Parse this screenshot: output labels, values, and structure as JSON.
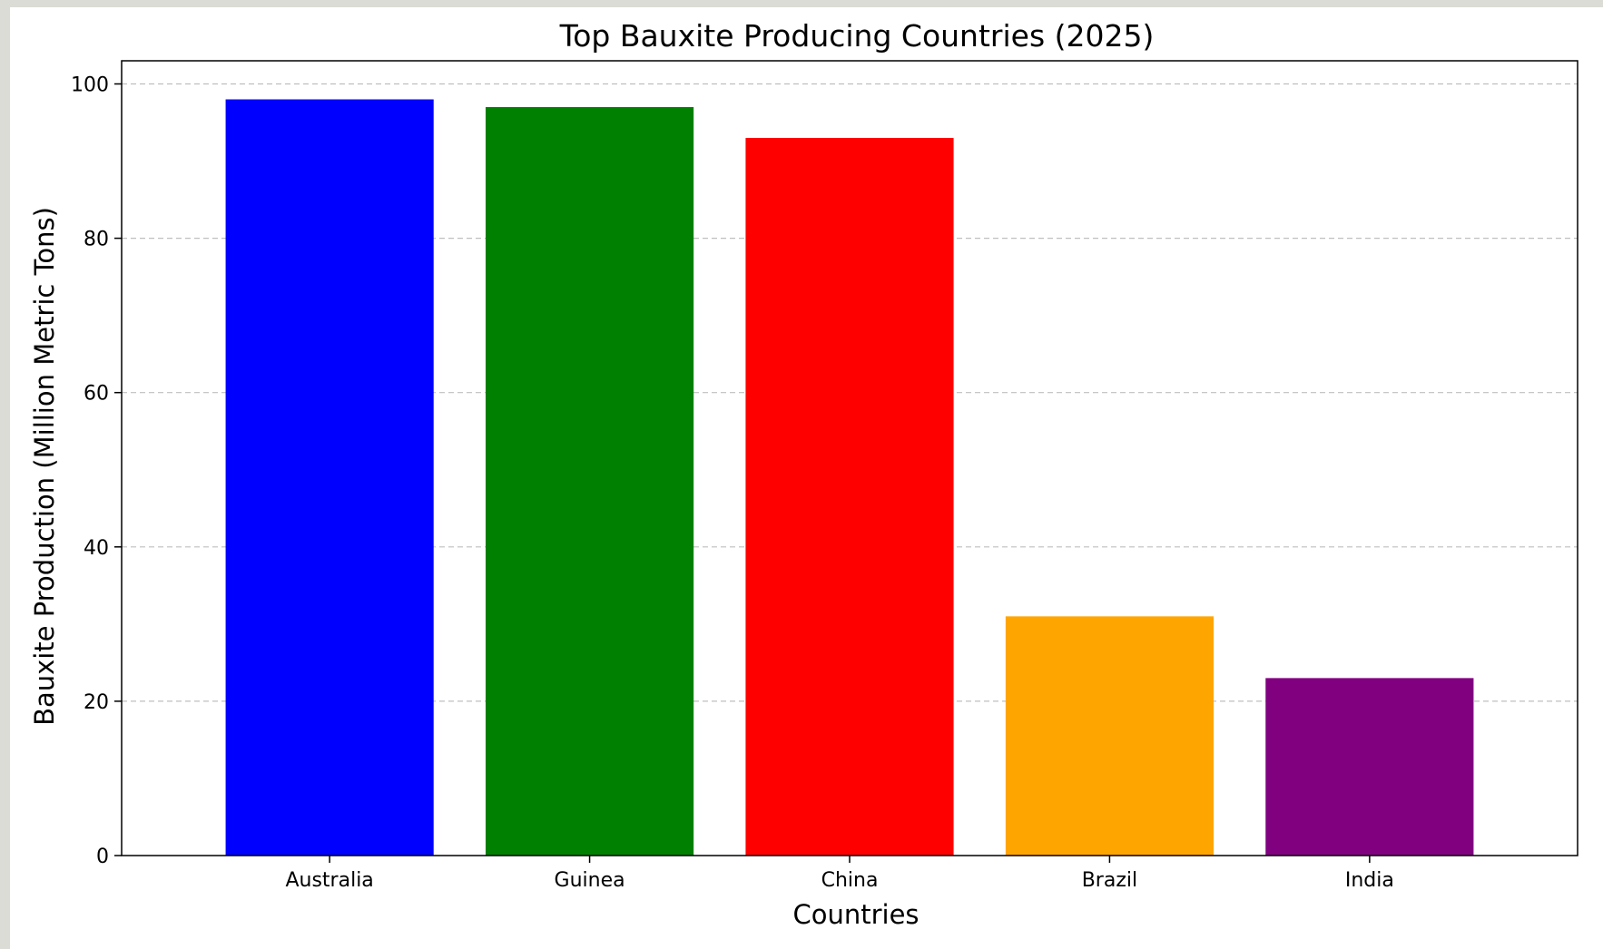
{
  "chart_data": {
    "type": "bar",
    "title": "Top Bauxite Producing Countries (2025)",
    "xlabel": "Countries",
    "ylabel": "Bauxite Production (Million Metric Tons)",
    "categories": [
      "Australia",
      "Guinea",
      "China",
      "Brazil",
      "India"
    ],
    "values": [
      98,
      97,
      93,
      31,
      23
    ],
    "colors": [
      "#0000ff",
      "#008000",
      "#ff0000",
      "#ffa500",
      "#800080"
    ],
    "ylim": [
      0,
      103
    ],
    "yticks": [
      "0",
      "20",
      "40",
      "60",
      "80",
      "100"
    ],
    "grid": "y-dashed",
    "legend": "none"
  }
}
